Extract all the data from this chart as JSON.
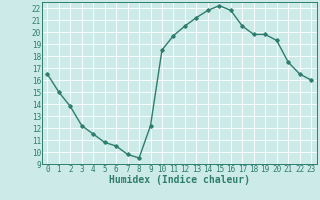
{
  "x": [
    0,
    1,
    2,
    3,
    4,
    5,
    6,
    7,
    8,
    9,
    10,
    11,
    12,
    13,
    14,
    15,
    16,
    17,
    18,
    19,
    20,
    21,
    22,
    23
  ],
  "y": [
    16.5,
    15.0,
    13.8,
    12.2,
    11.5,
    10.8,
    10.5,
    9.8,
    9.5,
    12.2,
    18.5,
    19.7,
    20.5,
    21.2,
    21.8,
    22.2,
    21.8,
    20.5,
    19.8,
    19.8,
    19.3,
    17.5,
    16.5,
    16.0
  ],
  "line_color": "#2e7d6e",
  "marker": "D",
  "marker_size": 1.8,
  "bg_color": "#cceae8",
  "grid_color": "#ffffff",
  "xlabel": "Humidex (Indice chaleur)",
  "ylim": [
    9,
    22.5
  ],
  "xlim": [
    -0.5,
    23.5
  ],
  "yticks": [
    9,
    10,
    11,
    12,
    13,
    14,
    15,
    16,
    17,
    18,
    19,
    20,
    21,
    22
  ],
  "xticks": [
    0,
    1,
    2,
    3,
    4,
    5,
    6,
    7,
    8,
    9,
    10,
    11,
    12,
    13,
    14,
    15,
    16,
    17,
    18,
    19,
    20,
    21,
    22,
    23
  ],
  "tick_fontsize": 5.5,
  "xlabel_fontsize": 7,
  "line_width": 1.0
}
